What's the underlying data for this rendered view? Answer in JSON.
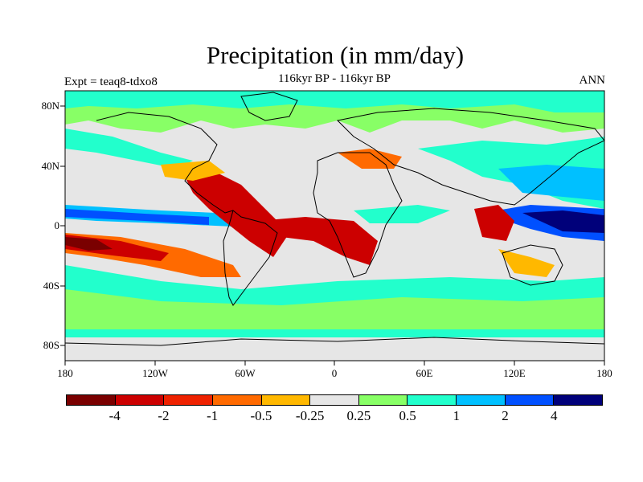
{
  "title": "Precipitation (in mm/day)",
  "subtitle": "116kyr BP - 116kyr BP",
  "left_label": "Expt = teaq8-tdxo8",
  "right_label": "ANN",
  "y_ticks": [
    "80N",
    "40N",
    "0",
    "40S",
    "80S"
  ],
  "x_ticks": [
    "180",
    "120W",
    "60W",
    "0",
    "60E",
    "120E",
    "180"
  ],
  "colorbar": {
    "colors": [
      "#7a0000",
      "#cc0000",
      "#ee2200",
      "#ff6a00",
      "#ffb800",
      "#e6e6e6",
      "#88ff66",
      "#22ffcc",
      "#00c0ff",
      "#0050ff",
      "#00007a"
    ],
    "labels": [
      "-4",
      "-2",
      "-1",
      "-0.5",
      "-0.25",
      "0.25",
      "0.5",
      "1",
      "2",
      "4"
    ]
  }
}
